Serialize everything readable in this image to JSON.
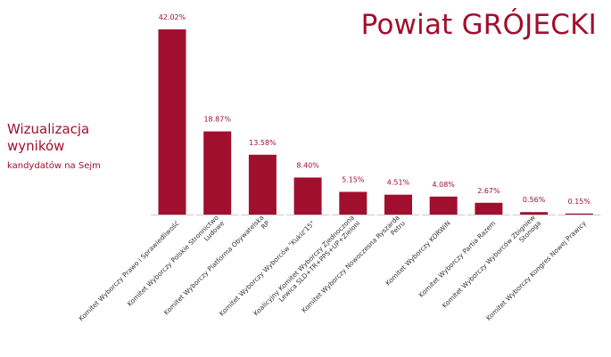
{
  "page_title": "Powiat GRÓJECKI",
  "sidebar": {
    "title_line1": "Wizualizacja",
    "title_line2": "wyników",
    "subtitle": "kandydatów na Sejm"
  },
  "colors": {
    "bar": "#a0102e",
    "text": "#a0102e",
    "baseline": "#cccccc"
  },
  "chart_data": {
    "type": "bar",
    "title": "",
    "categories": [
      [
        "Komitet Wyborczy Prawo i Sprawiedliwość"
      ],
      [
        "Komitet Wyborczy Polskie Stronnictwo",
        "Ludowe"
      ],
      [
        "Komitet Wyborczy Platforma Obywatelska",
        "RP"
      ],
      [
        "Komitet Wyborczy Wyborców \"Kukiz'15\""
      ],
      [
        "Koalicyjny Komitet Wyborczy Zjednoczona",
        "Lewica SLD+TR+PPS+UP+Zieloni"
      ],
      [
        "Komitet Wyborczy Nowoczesna Ryszarda",
        "Petru"
      ],
      [
        "Komitet Wyborczy KORWiN"
      ],
      [
        "Komitet Wyborczy Partia Razem"
      ],
      [
        "Komitet Wyborczy Wyborców Zbigniew",
        "Stonoga"
      ],
      [
        "Komitet Wyborczy Kongres Nowej Prawicy"
      ]
    ],
    "values": [
      42.02,
      18.87,
      13.58,
      8.4,
      5.15,
      4.51,
      4.08,
      2.67,
      0.56,
      0.15
    ],
    "value_labels": [
      "42.02%",
      "18.87%",
      "13.58%",
      "8.40%",
      "5.15%",
      "4.51%",
      "4.08%",
      "2.67%",
      "0.56%",
      "0.15%"
    ],
    "ylim": [
      0,
      42.02
    ],
    "grid": false,
    "legend": "none"
  }
}
